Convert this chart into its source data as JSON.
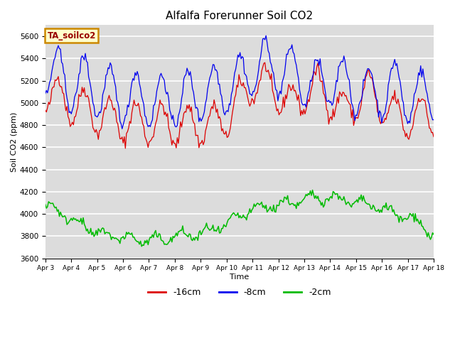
{
  "title": "Alfalfa Forerunner Soil CO2",
  "xlabel": "Time",
  "ylabel": "Soil CO2 (ppm)",
  "ylim": [
    3600,
    5700
  ],
  "yticks": [
    3600,
    3800,
    4000,
    4200,
    4400,
    4600,
    4800,
    5000,
    5200,
    5400,
    5600
  ],
  "xtick_labels": [
    "Apr 3",
    "Apr 4",
    "Apr 5",
    "Apr 6",
    "Apr 7",
    "Apr 8",
    "Apr 9",
    "Apr 10",
    "Apr 11",
    "Apr 12",
    "Apr 13",
    "Apr 14",
    "Apr 15",
    "Apr 16",
    "Apr 17",
    "Apr 18"
  ],
  "bg_color": "#dcdcdc",
  "grid_color": "white",
  "annotation_text": "TA_soilco2",
  "annotation_bg": "#ffffcc",
  "annotation_border": "#cc8800",
  "legend_labels": [
    "-16cm",
    "-8cm",
    "-2cm"
  ],
  "legend_colors": [
    "#dd0000",
    "#0000ee",
    "#00bb00"
  ],
  "n_days": 15,
  "pts_per_day": 24
}
